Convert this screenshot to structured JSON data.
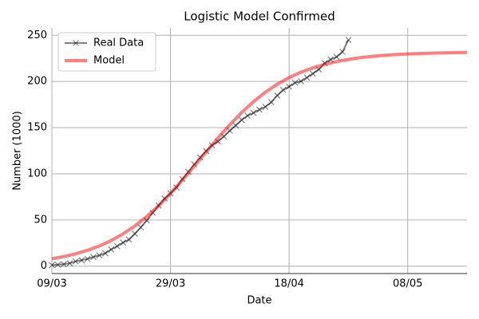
{
  "chart_data": {
    "type": "line",
    "title": "Logistic Model Confirmed",
    "xlabel": "Date",
    "ylabel": "Number (1000)",
    "xlim": [
      "09/03",
      "18/05"
    ],
    "xticks": [
      "09/03",
      "29/03",
      "18/04",
      "08/05"
    ],
    "ylim": [
      -8,
      258
    ],
    "yticks": [
      0,
      50,
      100,
      150,
      200,
      250
    ],
    "grid": true,
    "legend": "upper left",
    "series": [
      {
        "name": "Real Data",
        "color": "#000000",
        "marker": "x",
        "x": [
          "09/03",
          "10/03",
          "11/03",
          "12/03",
          "13/03",
          "14/03",
          "15/03",
          "16/03",
          "17/03",
          "18/03",
          "19/03",
          "20/03",
          "21/03",
          "22/03",
          "23/03",
          "24/03",
          "25/03",
          "26/03",
          "27/03",
          "28/03",
          "29/03",
          "30/03",
          "31/03",
          "01/04",
          "02/04",
          "03/04",
          "04/04",
          "05/04",
          "06/04",
          "07/04",
          "08/04",
          "09/04",
          "10/04",
          "11/04",
          "12/04",
          "13/04",
          "14/04",
          "15/04",
          "16/04",
          "17/04",
          "18/04",
          "19/04",
          "20/04",
          "21/04",
          "22/04",
          "23/04",
          "24/04",
          "25/04",
          "26/04",
          "27/04",
          "28/04"
        ],
        "values": [
          1.2,
          1.6,
          2.1,
          3.1,
          5.2,
          6.4,
          7.8,
          9.9,
          11.7,
          13.9,
          18.1,
          21.6,
          25.5,
          28.8,
          35.1,
          42.1,
          49.5,
          57.8,
          65.7,
          73.2,
          78.8,
          85.2,
          94.4,
          102.1,
          110.2,
          117.7,
          124.7,
          130.8,
          135.0,
          140.5,
          146.7,
          152.4,
          158.3,
          163.0,
          166.0,
          169.5,
          172.5,
          177.6,
          184.9,
          190.8,
          194.4,
          198.7,
          200.2,
          204.2,
          208.4,
          213.0,
          219.8,
          223.8,
          226.6,
          232.1,
          245.0
        ]
      },
      {
        "name": "Model",
        "color": "#ff0000",
        "x": [
          "09/03",
          "11/03",
          "13/03",
          "15/03",
          "17/03",
          "19/03",
          "21/03",
          "23/03",
          "25/03",
          "27/03",
          "29/03",
          "31/03",
          "02/04",
          "04/04",
          "06/04",
          "08/04",
          "10/04",
          "12/04",
          "14/04",
          "16/04",
          "18/04",
          "20/04",
          "22/04",
          "24/04",
          "26/04",
          "28/04",
          "30/04",
          "02/05",
          "04/05",
          "06/05",
          "08/05",
          "10/05",
          "12/05",
          "14/05",
          "16/05",
          "18/05"
        ],
        "values": [
          8.0,
          10.4,
          13.4,
          17.2,
          21.9,
          27.8,
          35.0,
          43.6,
          53.8,
          65.5,
          78.9,
          93.2,
          108.4,
          123.7,
          138.9,
          153.2,
          166.4,
          178.2,
          188.5,
          197.1,
          204.2,
          210.1,
          214.8,
          218.6,
          221.6,
          223.9,
          225.8,
          227.2,
          228.3,
          229.2,
          229.8,
          230.3,
          230.7,
          231.0,
          231.2,
          231.4
        ]
      }
    ]
  }
}
